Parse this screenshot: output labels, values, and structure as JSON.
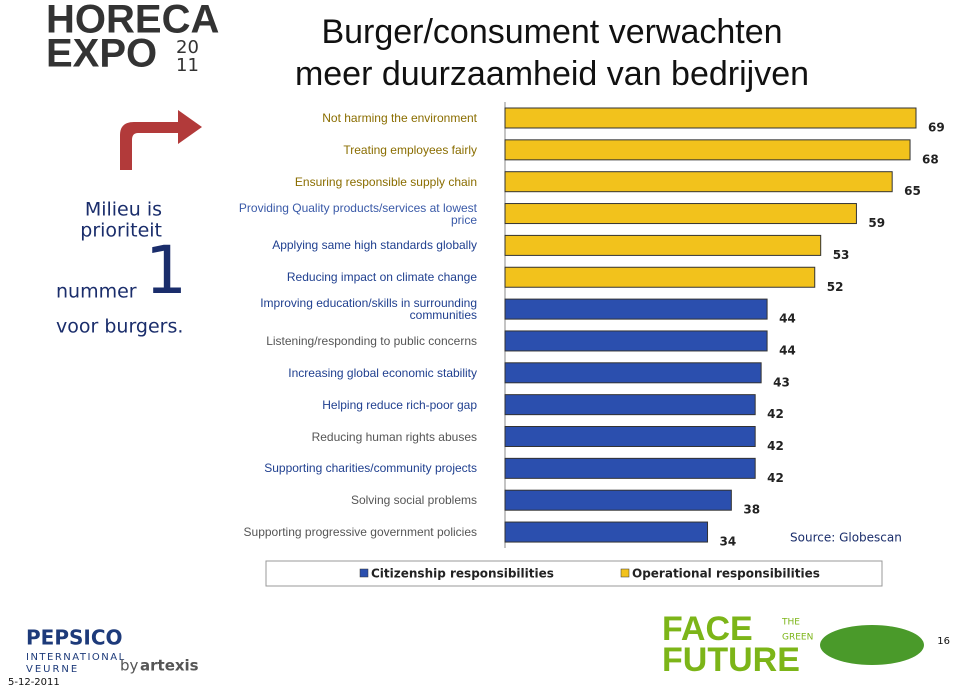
{
  "slide": {
    "title_line1": "Burger/consument verwachten",
    "title_line2": "meer  duurzaamheid van bedrijven",
    "side_line1": "Milieu is",
    "side_line2": "prioriteit",
    "side_line3": "nummer",
    "side_number": "1",
    "side_line4": "voor burgers."
  },
  "logos": {
    "horeca": "HORECA",
    "expo": "EXPO",
    "year_top": "20",
    "year_bottom": "11",
    "pepsico": "PEPSICO",
    "international": "INTERNATIONAL",
    "veurne": "VEURNE",
    "by": "by",
    "artexis": "artexis",
    "face": "FACE",
    "the": "THE",
    "green": "GREEN",
    "future": "FUTURE"
  },
  "footer": {
    "date": "5-12-2011",
    "page": "16"
  },
  "chart_data": {
    "type": "bar",
    "orientation": "horizontal",
    "categories": [
      "Not harming the environment",
      "Treating employees fairly",
      "Ensuring responsible supply chain",
      "Providing Quality products/services at lowest price",
      "Applying same high standards globally",
      "Reducing impact on climate change",
      "Improving education/skills in surrounding communities",
      "Listening/responding to public concerns",
      "Increasing global economic stability",
      "Helping reduce rich-poor gap",
      "Reducing human rights abuses",
      "Supporting charities/community projects",
      "Solving social problems",
      "Supporting progressive government policies"
    ],
    "series": [
      {
        "name": "Citizenship responsibilities",
        "color": "#2b4fae",
        "values": [
          null,
          null,
          null,
          null,
          null,
          null,
          44,
          44,
          43,
          42,
          42,
          42,
          38,
          34
        ]
      },
      {
        "name": "Operational responsibilities",
        "color": "#f2c21c",
        "values": [
          69,
          68,
          65,
          59,
          53,
          52,
          null,
          null,
          null,
          null,
          null,
          null,
          null,
          null
        ]
      }
    ],
    "source": "Source: Globescan",
    "legend": "bottom"
  }
}
